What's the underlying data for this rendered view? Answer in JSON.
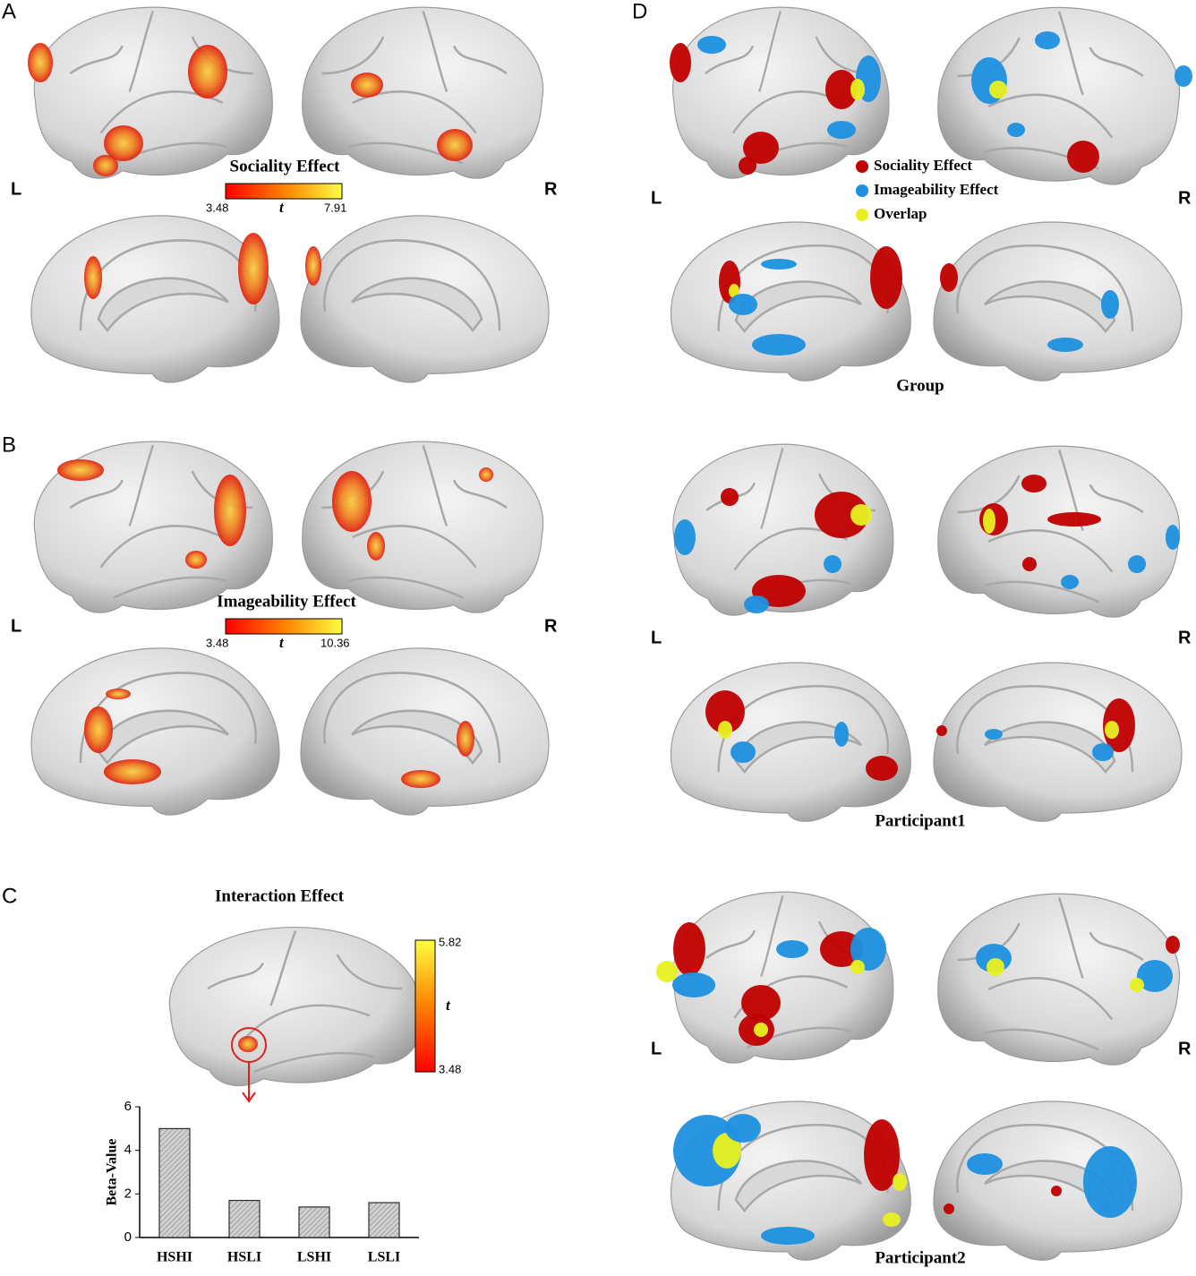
{
  "panel_labels": [
    "A",
    "B",
    "C",
    "D"
  ],
  "side_labels": {
    "left": "L",
    "right": "R"
  },
  "panel_a": {
    "title": "Sociality Effect",
    "colorbar": {
      "min": "3.48",
      "symbol": "t",
      "max": "7.91"
    }
  },
  "panel_b": {
    "title": "Imageability Effect",
    "colorbar": {
      "min": "3.48",
      "symbol": "t",
      "max": "10.36"
    }
  },
  "panel_c": {
    "title": "Interaction Effect",
    "colorbar": {
      "max": "5.82",
      "symbol": "t",
      "min": "3.48"
    }
  },
  "chart_data": {
    "type": "bar",
    "y_label": "Beta-Value",
    "categories": [
      "HSHI",
      "HSLI",
      "LSHI",
      "LSLI"
    ],
    "values": [
      5.0,
      1.7,
      1.4,
      1.6
    ],
    "color": "#d0d0d0",
    "ylim": [
      0,
      6
    ],
    "yticks": [
      0,
      2,
      4,
      6
    ]
  },
  "panel_d": {
    "legend": [
      {
        "name": "Sociality Effect",
        "color": "#c00000"
      },
      {
        "name": "Imageability Effect",
        "color": "#1e90e0"
      },
      {
        "name": "Overlap",
        "color": "#e8f020"
      }
    ],
    "captions": [
      "Group",
      "Participant1",
      "Participant2"
    ]
  }
}
